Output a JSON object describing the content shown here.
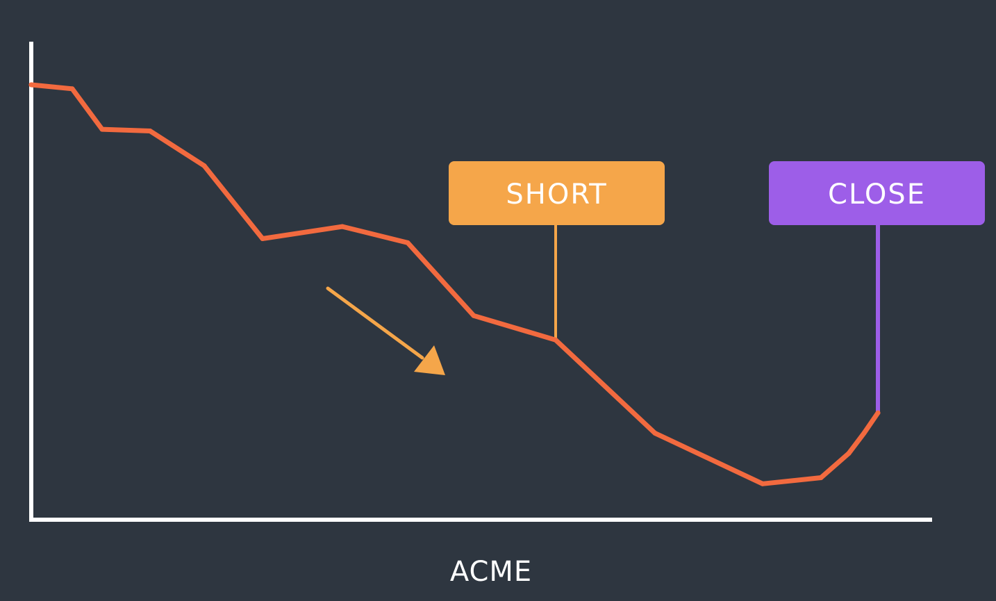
{
  "chart_data": {
    "type": "line",
    "title": "",
    "xlabel": "ACME",
    "ylabel": "",
    "grid": false,
    "x": [
      0,
      1,
      2,
      3,
      4,
      5,
      6,
      7,
      8,
      9,
      10,
      11,
      12,
      13,
      14,
      15
    ],
    "series": [
      {
        "color": "#f26a3f",
        "values": [
          100,
          99,
          89,
          88.6,
          80,
          62,
          65,
          61,
          43,
          37,
          14,
          1.5,
          3,
          9,
          14,
          19
        ]
      }
    ],
    "annotations": [
      {
        "label": "SHORT",
        "x_index": 9,
        "color": "#f5a64a"
      },
      {
        "label": "CLOSE",
        "x_index": 15,
        "color": "#9d5ee8"
      }
    ],
    "trend_arrow": {
      "direction": "down",
      "color": "#f5a64a"
    }
  },
  "colors": {
    "background": "#2e3640",
    "axis": "#ffffff",
    "line": "#f26a3f",
    "short": "#f5a64a",
    "close": "#9d5ee8",
    "label_text": "#ffffff"
  }
}
